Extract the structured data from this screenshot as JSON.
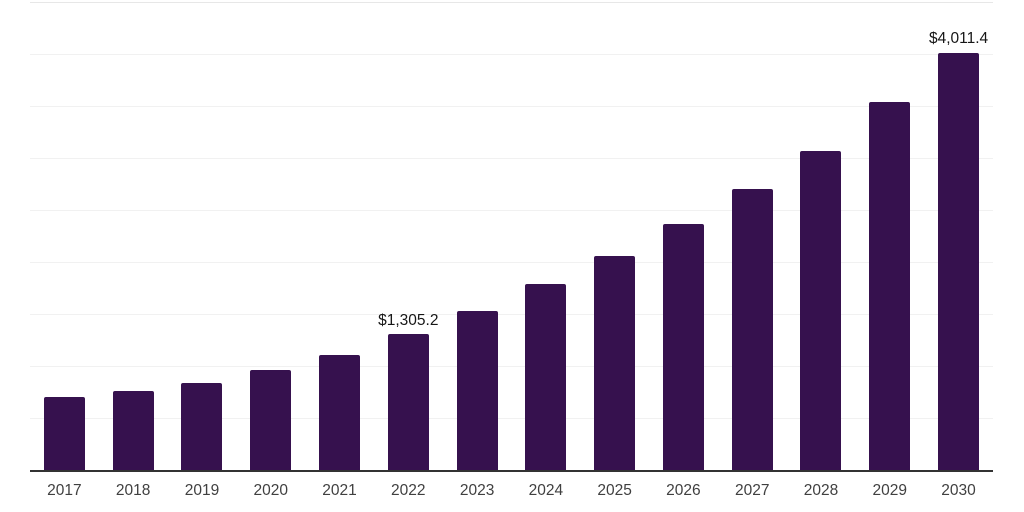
{
  "chart_data": {
    "type": "bar",
    "title": "",
    "xlabel": "",
    "ylabel": "",
    "categories": [
      "2017",
      "2018",
      "2019",
      "2020",
      "2021",
      "2022",
      "2023",
      "2024",
      "2025",
      "2026",
      "2027",
      "2028",
      "2029",
      "2030"
    ],
    "values": [
      698,
      757,
      837,
      959,
      1110,
      1305.2,
      1532,
      1790,
      2055,
      2366,
      2701,
      3066,
      3539,
      4011.4
    ],
    "data_labels": {
      "2022": "$1,305.2",
      "2030": "$4,011.4"
    },
    "ylim": [
      0,
      4500
    ],
    "gridline_step": 500,
    "grid": "on",
    "legend": "none",
    "colors": {
      "bar": "#36114E",
      "axis": "#333333",
      "gridline": "#f1f1f1",
      "top_gridline": "#e7e7e7",
      "tick_label": "#404040",
      "data_label": "#161616",
      "background": "#ffffff"
    }
  }
}
